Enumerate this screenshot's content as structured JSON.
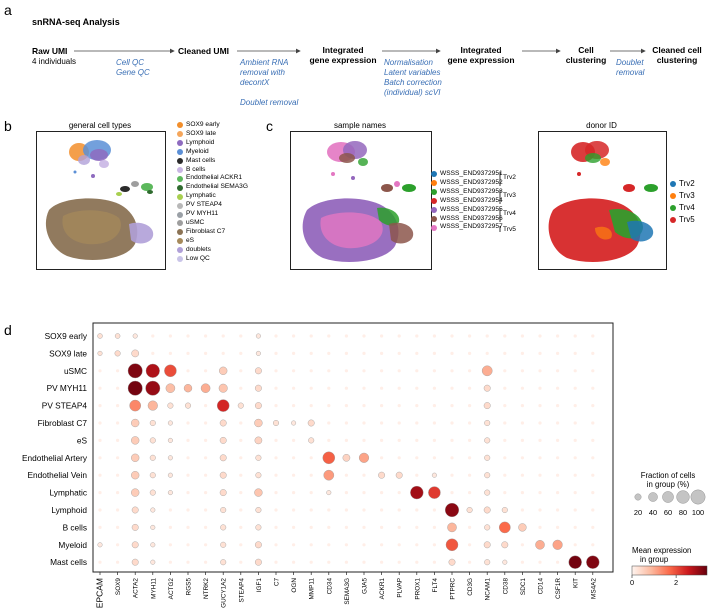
{
  "panels": {
    "a": "a",
    "b": "b",
    "c": "c",
    "d": "d"
  },
  "workflow": {
    "title": "snRNA-seq Analysis",
    "raw": "Raw UMI",
    "raw_sub": "4 individuals",
    "step1_notes": [
      "Cell QC",
      "Gene QC"
    ],
    "cleaned_umi": "Cleaned UMI",
    "step2_notes": [
      "Ambient RNA",
      "removal with",
      "decontX",
      "",
      "Doublet removal"
    ],
    "integrated1": [
      "Integrated",
      "gene expression"
    ],
    "step3_notes": [
      "Normalisation",
      "Latent variables",
      "Batch correction",
      "(individual) scVI"
    ],
    "integrated2": [
      "Integrated",
      "gene expression"
    ],
    "cell_clustering": [
      "Cell",
      "clustering"
    ],
    "step5_notes": [
      "Doublet",
      "removal"
    ],
    "cleaned_clustering": [
      "Cleaned cell",
      "clustering"
    ]
  },
  "umap_b": {
    "title": "general cell types",
    "legend": [
      {
        "label": "SOX9 early",
        "color": "#f28e2b"
      },
      {
        "label": "SOX9 late",
        "color": "#f5a65b"
      },
      {
        "label": "Lymphoid",
        "color": "#8e6bbf"
      },
      {
        "label": "Myeloid",
        "color": "#5b8fd6"
      },
      {
        "label": "Mast cells",
        "color": "#2b2b2b"
      },
      {
        "label": "B cells",
        "color": "#c9b6e4"
      },
      {
        "label": "Endothelial ACKR1",
        "color": "#5cb85c"
      },
      {
        "label": "Endothelial SEMA3G",
        "color": "#2f6b2f"
      },
      {
        "label": "Lymphatic",
        "color": "#a8cf4f"
      },
      {
        "label": "PV STEAP4",
        "color": "#b8b8b8"
      },
      {
        "label": "PV MYH11",
        "color": "#9aa0a6"
      },
      {
        "label": "uSMC",
        "color": "#9e9e9e"
      },
      {
        "label": "Fibroblast C7",
        "color": "#8b7355"
      },
      {
        "label": "eS",
        "color": "#a68a5b"
      },
      {
        "label": "doublets",
        "color": "#b0a0d8"
      },
      {
        "label": "Low QC",
        "color": "#c9c4e8"
      }
    ]
  },
  "umap_c1": {
    "title": "sample names",
    "legend": [
      {
        "label": "WSSS_END9372951",
        "color": "#1f77b4"
      },
      {
        "label": "WSSS_END9372952",
        "color": "#ff7f0e"
      },
      {
        "label": "WSSS_END9372953",
        "color": "#2ca02c"
      },
      {
        "label": "WSSS_END9372954",
        "color": "#d62728"
      },
      {
        "label": "WSSS_END9372955",
        "color": "#9467bd"
      },
      {
        "label": "WSSS_END9372956",
        "color": "#8c564b"
      },
      {
        "label": "WSSS_END9372957",
        "color": "#e377c2"
      }
    ],
    "groups": [
      "Trv2",
      "Trv3",
      "Trv4",
      "Trv5"
    ]
  },
  "umap_c2": {
    "title": "donor ID",
    "legend": [
      {
        "label": "Trv2",
        "color": "#1f77b4"
      },
      {
        "label": "Trv3",
        "color": "#ff7f0e"
      },
      {
        "label": "Trv4",
        "color": "#2ca02c"
      },
      {
        "label": "Trv5",
        "color": "#d62728"
      }
    ]
  },
  "chart_data": {
    "type": "dotplot",
    "rows": [
      "SOX9 early",
      "SOX9 late",
      "uSMC",
      "PV MYH11",
      "PV STEAP4",
      "Fibroblast C7",
      "eS",
      "Endothelial Artery",
      "Endothelial Vein",
      "Lymphatic",
      "Lymphoid",
      "B cells",
      "Myeloid",
      "Mast cells"
    ],
    "genes": [
      "EPCAM",
      "SOX9",
      "ACTA2",
      "MYH11",
      "ACTG2",
      "RGS5",
      "NTRK2",
      "GUCY1A2",
      "STEAP4",
      "IGF1",
      "C7",
      "OGN",
      "MMP11",
      "CD34",
      "SEMA3G",
      "GJA5",
      "ACKR1",
      "PLVAP",
      "PROX1",
      "FLT4",
      "PTPRC",
      "CD3G",
      "NCAM1",
      "CD38",
      "SDC1",
      "CD14",
      "CSF1R",
      "KIT",
      "MS4A2"
    ],
    "fraction_pct": [
      [
        12,
        12,
        10,
        5,
        5,
        5,
        5,
        5,
        5,
        10,
        5,
        5,
        5,
        5,
        5,
        5,
        5,
        5,
        5,
        5,
        5,
        5,
        5,
        5,
        5,
        5,
        5,
        5,
        5
      ],
      [
        10,
        15,
        25,
        5,
        5,
        5,
        5,
        5,
        5,
        10,
        5,
        5,
        5,
        5,
        5,
        5,
        5,
        5,
        5,
        5,
        5,
        5,
        5,
        5,
        5,
        5,
        5,
        5,
        5
      ],
      [
        5,
        5,
        100,
        90,
        70,
        5,
        5,
        30,
        5,
        20,
        5,
        5,
        5,
        5,
        5,
        5,
        5,
        5,
        5,
        5,
        5,
        5,
        50,
        5,
        5,
        5,
        5,
        5,
        5
      ],
      [
        5,
        5,
        100,
        100,
        40,
        30,
        40,
        35,
        5,
        20,
        5,
        5,
        5,
        5,
        5,
        5,
        5,
        5,
        5,
        5,
        5,
        5,
        20,
        5,
        5,
        5,
        5,
        5,
        5
      ],
      [
        5,
        5,
        60,
        45,
        15,
        15,
        5,
        70,
        15,
        20,
        5,
        5,
        5,
        5,
        5,
        5,
        5,
        5,
        5,
        5,
        5,
        5,
        20,
        5,
        5,
        5,
        5,
        5,
        5
      ],
      [
        5,
        5,
        30,
        15,
        10,
        5,
        5,
        20,
        5,
        30,
        15,
        10,
        20,
        5,
        5,
        5,
        5,
        5,
        5,
        5,
        5,
        5,
        15,
        5,
        5,
        5,
        5,
        5,
        5
      ],
      [
        5,
        5,
        30,
        15,
        10,
        5,
        5,
        20,
        5,
        25,
        5,
        5,
        15,
        5,
        5,
        5,
        5,
        5,
        5,
        5,
        5,
        5,
        15,
        5,
        5,
        5,
        5,
        5,
        5
      ],
      [
        5,
        5,
        30,
        15,
        10,
        5,
        5,
        20,
        5,
        15,
        5,
        5,
        5,
        70,
        25,
        45,
        5,
        5,
        5,
        5,
        5,
        5,
        15,
        5,
        5,
        5,
        5,
        5,
        5
      ],
      [
        5,
        5,
        30,
        15,
        10,
        5,
        5,
        20,
        5,
        15,
        5,
        5,
        5,
        50,
        5,
        5,
        20,
        20,
        5,
        10,
        5,
        5,
        15,
        5,
        5,
        5,
        5,
        5,
        5
      ],
      [
        5,
        5,
        30,
        15,
        10,
        5,
        5,
        20,
        5,
        30,
        5,
        5,
        5,
        10,
        5,
        5,
        5,
        5,
        80,
        70,
        5,
        5,
        15,
        5,
        5,
        5,
        5,
        5,
        5
      ],
      [
        5,
        5,
        20,
        10,
        5,
        5,
        5,
        15,
        5,
        15,
        5,
        5,
        5,
        5,
        5,
        5,
        5,
        5,
        5,
        5,
        90,
        15,
        20,
        15,
        5,
        5,
        5,
        5,
        5
      ],
      [
        5,
        5,
        20,
        10,
        5,
        5,
        5,
        15,
        5,
        15,
        5,
        5,
        5,
        5,
        5,
        5,
        5,
        5,
        5,
        5,
        40,
        5,
        15,
        60,
        30,
        5,
        5,
        5,
        5
      ],
      [
        10,
        5,
        20,
        10,
        5,
        5,
        5,
        15,
        5,
        20,
        5,
        5,
        5,
        5,
        5,
        5,
        5,
        5,
        5,
        5,
        70,
        5,
        20,
        20,
        5,
        40,
        45,
        5,
        5
      ],
      [
        5,
        5,
        20,
        10,
        5,
        5,
        5,
        15,
        5,
        20,
        5,
        5,
        5,
        5,
        5,
        5,
        5,
        5,
        5,
        5,
        20,
        5,
        15,
        10,
        5,
        5,
        5,
        80,
        80
      ]
    ],
    "mean_expr": [
      [
        0.3,
        0.3,
        0.2,
        0.1,
        0.1,
        0.1,
        0.1,
        0.1,
        0.1,
        0.2,
        0.1,
        0.1,
        0.1,
        0.1,
        0.1,
        0.1,
        0.1,
        0.1,
        0.1,
        0.1,
        0.1,
        0.1,
        0.1,
        0.1,
        0.1,
        0.1,
        0.1,
        0.1,
        0.1
      ],
      [
        0.3,
        0.4,
        0.4,
        0.1,
        0.1,
        0.1,
        0.1,
        0.1,
        0.1,
        0.2,
        0.1,
        0.1,
        0.1,
        0.1,
        0.1,
        0.1,
        0.1,
        0.1,
        0.1,
        0.1,
        0.1,
        0.1,
        0.1,
        0.1,
        0.1,
        0.1,
        0.1,
        0.1,
        0.1
      ],
      [
        0.1,
        0.1,
        3.2,
        2.8,
        2.0,
        0.1,
        0.1,
        0.6,
        0.1,
        0.4,
        0.1,
        0.1,
        0.1,
        0.1,
        0.1,
        0.1,
        0.1,
        0.1,
        0.1,
        0.1,
        0.1,
        0.1,
        1.0,
        0.1,
        0.1,
        0.1,
        0.1,
        0.1,
        0.1
      ],
      [
        0.1,
        0.1,
        3.3,
        3.0,
        0.8,
        0.9,
        1.0,
        0.7,
        0.1,
        0.4,
        0.1,
        0.1,
        0.1,
        0.1,
        0.1,
        0.1,
        0.1,
        0.1,
        0.1,
        0.1,
        0.1,
        0.1,
        0.4,
        0.1,
        0.1,
        0.1,
        0.1,
        0.1,
        0.1
      ],
      [
        0.1,
        0.1,
        1.4,
        0.9,
        0.3,
        0.3,
        0.1,
        2.4,
        0.3,
        0.4,
        0.1,
        0.1,
        0.1,
        0.1,
        0.1,
        0.1,
        0.1,
        0.1,
        0.1,
        0.1,
        0.1,
        0.1,
        0.4,
        0.1,
        0.1,
        0.1,
        0.1,
        0.1,
        0.1
      ],
      [
        0.1,
        0.1,
        0.6,
        0.3,
        0.2,
        0.1,
        0.1,
        0.4,
        0.1,
        0.6,
        0.3,
        0.2,
        0.4,
        0.1,
        0.1,
        0.1,
        0.1,
        0.1,
        0.1,
        0.1,
        0.1,
        0.1,
        0.3,
        0.1,
        0.1,
        0.1,
        0.1,
        0.1,
        0.1
      ],
      [
        0.1,
        0.1,
        0.6,
        0.3,
        0.2,
        0.1,
        0.1,
        0.4,
        0.1,
        0.5,
        0.1,
        0.1,
        0.3,
        0.1,
        0.1,
        0.1,
        0.1,
        0.1,
        0.1,
        0.1,
        0.1,
        0.1,
        0.3,
        0.1,
        0.1,
        0.1,
        0.1,
        0.1,
        0.1
      ],
      [
        0.1,
        0.1,
        0.6,
        0.3,
        0.2,
        0.1,
        0.1,
        0.4,
        0.1,
        0.3,
        0.1,
        0.1,
        0.1,
        1.8,
        0.5,
        1.1,
        0.1,
        0.1,
        0.1,
        0.1,
        0.1,
        0.1,
        0.3,
        0.1,
        0.1,
        0.1,
        0.1,
        0.1,
        0.1
      ],
      [
        0.1,
        0.1,
        0.6,
        0.3,
        0.2,
        0.1,
        0.1,
        0.4,
        0.1,
        0.3,
        0.1,
        0.1,
        0.1,
        1.2,
        0.1,
        0.1,
        0.4,
        0.4,
        0.1,
        0.2,
        0.1,
        0.1,
        0.3,
        0.1,
        0.1,
        0.1,
        0.1,
        0.1,
        0.1
      ],
      [
        0.1,
        0.1,
        0.6,
        0.3,
        0.2,
        0.1,
        0.1,
        0.4,
        0.1,
        0.7,
        0.1,
        0.1,
        0.1,
        0.2,
        0.1,
        0.1,
        0.1,
        0.1,
        2.9,
        2.2,
        0.1,
        0.1,
        0.3,
        0.1,
        0.1,
        0.1,
        0.1,
        0.1,
        0.1
      ],
      [
        0.1,
        0.1,
        0.4,
        0.2,
        0.1,
        0.1,
        0.1,
        0.3,
        0.1,
        0.3,
        0.1,
        0.1,
        0.1,
        0.1,
        0.1,
        0.1,
        0.1,
        0.1,
        0.1,
        0.1,
        3.1,
        0.3,
        0.4,
        0.3,
        0.1,
        0.1,
        0.1,
        0.1,
        0.1
      ],
      [
        0.1,
        0.1,
        0.4,
        0.2,
        0.1,
        0.1,
        0.1,
        0.3,
        0.1,
        0.3,
        0.1,
        0.1,
        0.1,
        0.1,
        0.1,
        0.1,
        0.1,
        0.1,
        0.1,
        0.1,
        0.9,
        0.1,
        0.3,
        1.7,
        0.6,
        0.1,
        0.1,
        0.1,
        0.1
      ],
      [
        0.2,
        0.1,
        0.4,
        0.2,
        0.1,
        0.1,
        0.1,
        0.3,
        0.1,
        0.4,
        0.1,
        0.1,
        0.1,
        0.1,
        0.1,
        0.1,
        0.1,
        0.1,
        0.1,
        0.1,
        1.9,
        0.1,
        0.4,
        0.4,
        0.1,
        1.0,
        1.1,
        0.1,
        0.1
      ],
      [
        0.1,
        0.1,
        0.4,
        0.2,
        0.1,
        0.1,
        0.1,
        0.3,
        0.1,
        0.4,
        0.1,
        0.1,
        0.1,
        0.1,
        0.1,
        0.1,
        0.1,
        0.1,
        0.1,
        0.1,
        0.4,
        0.1,
        0.3,
        0.2,
        0.1,
        0.1,
        0.1,
        3.3,
        3.2
      ]
    ],
    "size_legend": {
      "title": [
        "Fraction of cells",
        "in group (%)"
      ],
      "ticks": [
        "20",
        "40",
        "60",
        "80",
        "100"
      ],
      "values": [
        20,
        40,
        60,
        80,
        100
      ]
    },
    "color_legend": {
      "title": [
        "Mean expression",
        "in group"
      ],
      "ticks": [
        "0",
        "2"
      ],
      "range": [
        0,
        3.4
      ],
      "colors": [
        "#fff5f0",
        "#fcbba1",
        "#fb6a4a",
        "#cb181d",
        "#67000d"
      ]
    }
  }
}
